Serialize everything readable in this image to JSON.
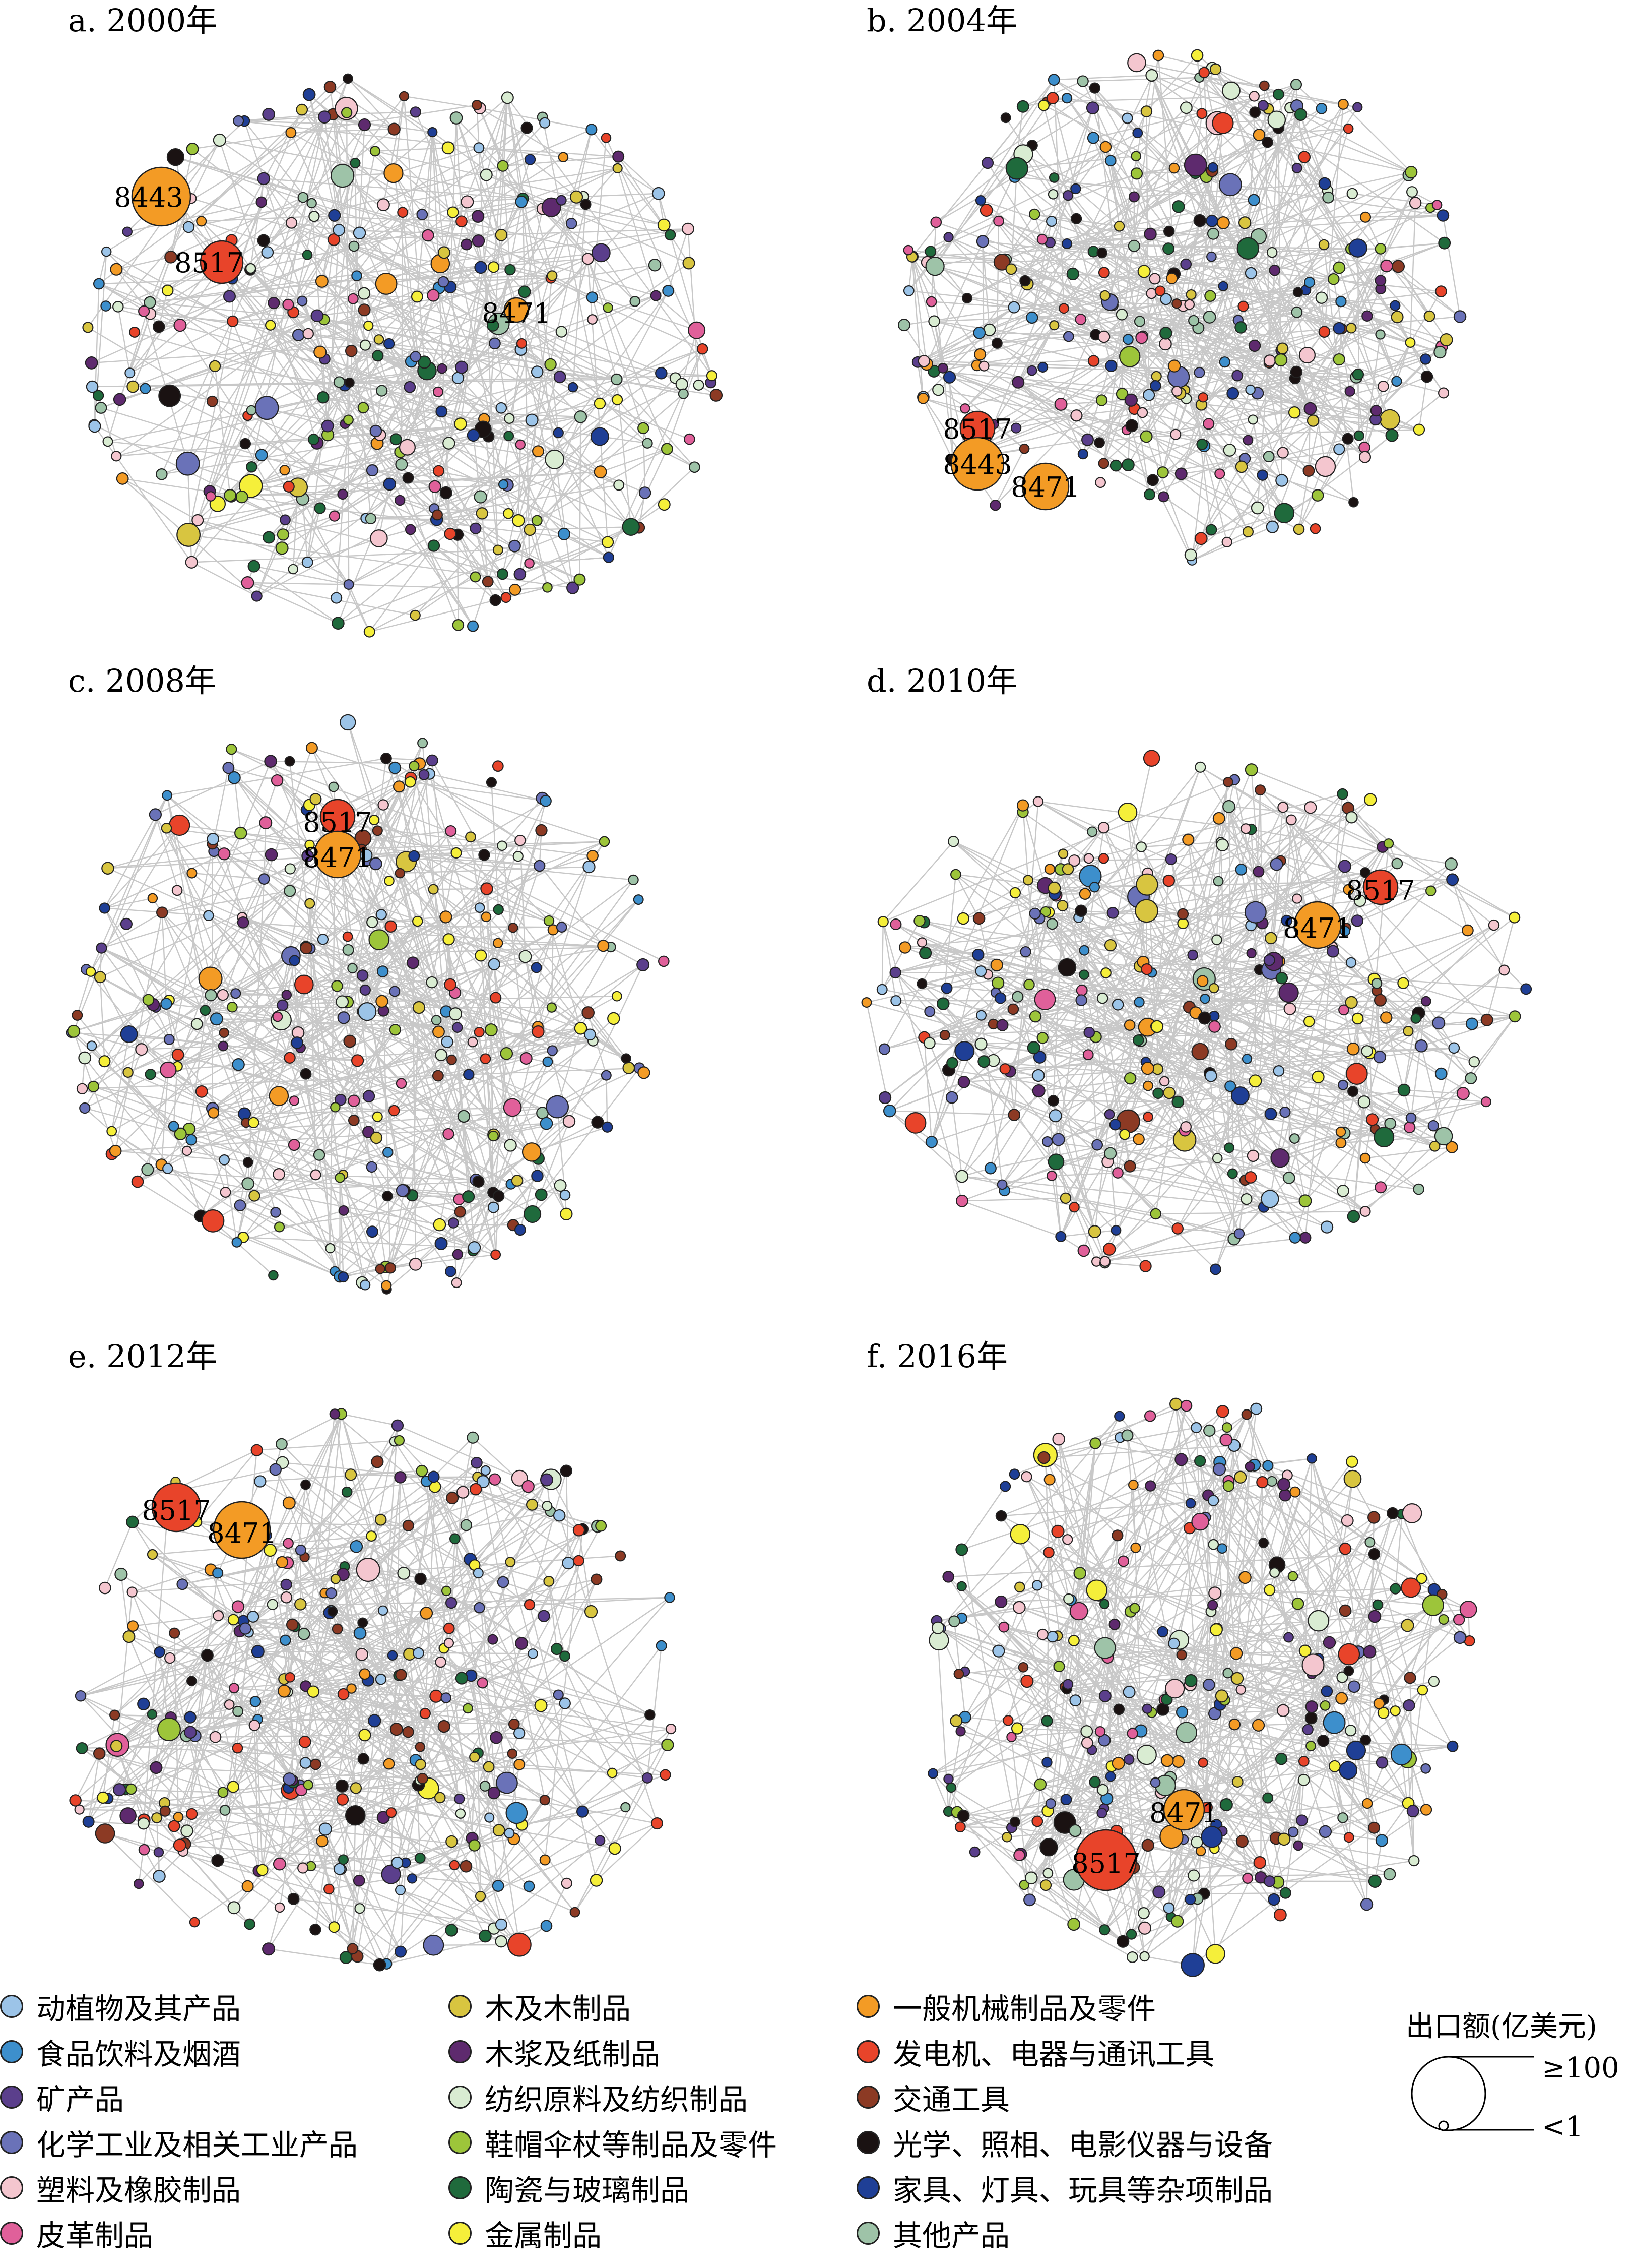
{
  "panels": [
    {
      "title": "a. 2000年",
      "labels": [
        "8443",
        "8517",
        "8471"
      ],
      "layout": "ring"
    },
    {
      "title": "b. 2004年",
      "labels": [
        "8517",
        "8443",
        "8471"
      ],
      "layout": "central"
    },
    {
      "title": "c. 2008年",
      "labels": [
        "8517",
        "8471"
      ],
      "layout": "spread"
    },
    {
      "title": "d. 2010年",
      "labels": [
        "8517",
        "8471"
      ],
      "layout": "wide"
    },
    {
      "title": "e. 2012年",
      "labels": [
        "8517",
        "8471"
      ],
      "layout": "spread"
    },
    {
      "title": "f. 2016年",
      "labels": [
        "8471",
        "8517"
      ],
      "layout": "central"
    }
  ],
  "legend": {
    "categories": [
      {
        "label": "动植物及其产品",
        "color": "#9cc4e8"
      },
      {
        "label": "食品饮料及烟酒",
        "color": "#3d8fcc"
      },
      {
        "label": "矿产品",
        "color": "#5b3f8c"
      },
      {
        "label": "化学工业及相关工业产品",
        "color": "#6a72b8"
      },
      {
        "label": "塑料及橡胶制品",
        "color": "#f4c6cf"
      },
      {
        "label": "皮革制品",
        "color": "#e0609a"
      },
      {
        "label": "木及木制品",
        "color": "#d8c540"
      },
      {
        "label": "木浆及纸制品",
        "color": "#5e2a6e"
      },
      {
        "label": "纺织原料及纺织制品",
        "color": "#d9ecd2"
      },
      {
        "label": "鞋帽伞杖等制品及零件",
        "color": "#9dc53a"
      },
      {
        "label": "陶瓷与玻璃制品",
        "color": "#1f6a3c"
      },
      {
        "label": "金属制品",
        "color": "#f5ef3a"
      },
      {
        "label": "一般机械制品及零件",
        "color": "#f39b25"
      },
      {
        "label": "发电机、电器与通讯工具",
        "color": "#e8442a"
      },
      {
        "label": "交通工具",
        "color": "#8c3a24"
      },
      {
        "label": "光学、照相、电影仪器与设备",
        "color": "#1a1212"
      },
      {
        "label": "家具、灯具、玩具等杂项制品",
        "color": "#1f3f96"
      },
      {
        "label": "其他产品",
        "color": "#9ec3a8"
      }
    ],
    "size_title": "出口额(亿美元)",
    "size_max": "≥100",
    "size_min": "<1"
  }
}
